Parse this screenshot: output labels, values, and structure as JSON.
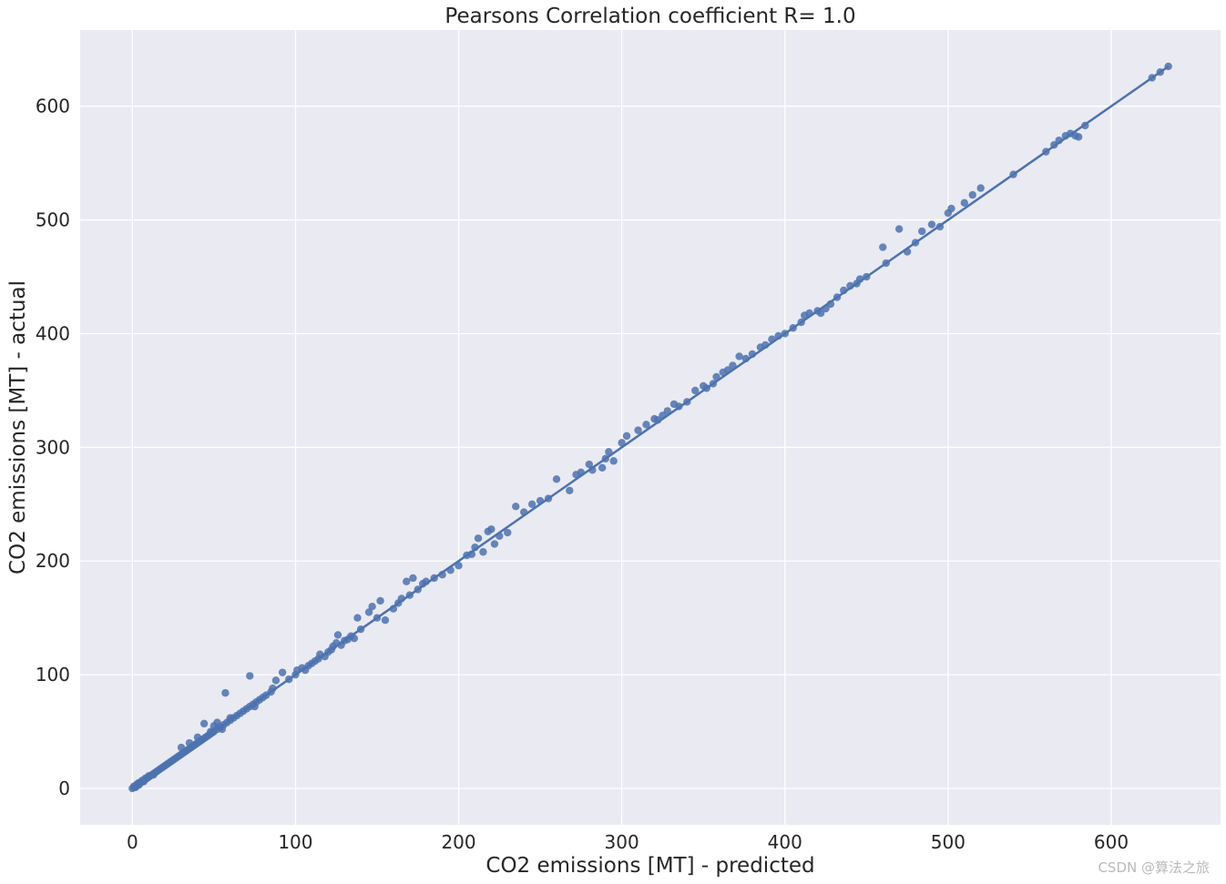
{
  "chart_data": {
    "type": "scatter",
    "title": "Pearsons Correlation coefficient R= 1.0",
    "xlabel": "CO2 emissions [MT] - predicted",
    "ylabel": "CO2 emissions [MT] - actual",
    "xlim": [
      -32,
      667
    ],
    "ylim": [
      -32,
      667
    ],
    "xticks": [
      0,
      100,
      200,
      300,
      400,
      500,
      600
    ],
    "yticks": [
      0,
      100,
      200,
      300,
      400,
      500,
      600
    ],
    "grid": true,
    "background": "#eaeaf2",
    "grid_color": "#ffffff",
    "point_color": "#4c72b0",
    "regression_line": {
      "x": [
        0,
        635
      ],
      "y": [
        0,
        635
      ]
    },
    "points": [
      [
        0,
        0
      ],
      [
        1,
        1
      ],
      [
        1,
        2
      ],
      [
        2,
        1
      ],
      [
        2,
        2
      ],
      [
        3,
        3
      ],
      [
        3,
        4
      ],
      [
        4,
        3
      ],
      [
        4,
        5
      ],
      [
        5,
        5
      ],
      [
        6,
        6
      ],
      [
        6,
        7
      ],
      [
        7,
        6
      ],
      [
        8,
        8
      ],
      [
        8,
        9
      ],
      [
        9,
        9
      ],
      [
        10,
        10
      ],
      [
        10,
        11
      ],
      [
        11,
        11
      ],
      [
        12,
        12
      ],
      [
        13,
        13
      ],
      [
        13,
        12
      ],
      [
        14,
        14
      ],
      [
        15,
        15
      ],
      [
        16,
        16
      ],
      [
        17,
        17
      ],
      [
        18,
        18
      ],
      [
        19,
        19
      ],
      [
        20,
        20
      ],
      [
        21,
        21
      ],
      [
        22,
        22
      ],
      [
        23,
        23
      ],
      [
        24,
        24
      ],
      [
        25,
        25
      ],
      [
        26,
        26
      ],
      [
        27,
        27
      ],
      [
        28,
        28
      ],
      [
        29,
        29
      ],
      [
        30,
        30
      ],
      [
        31,
        31
      ],
      [
        32,
        32
      ],
      [
        33,
        33
      ],
      [
        34,
        34
      ],
      [
        35,
        35
      ],
      [
        36,
        36
      ],
      [
        37,
        37
      ],
      [
        38,
        38
      ],
      [
        39,
        39
      ],
      [
        40,
        40
      ],
      [
        41,
        41
      ],
      [
        42,
        42
      ],
      [
        43,
        43
      ],
      [
        44,
        44
      ],
      [
        45,
        45
      ],
      [
        46,
        46
      ],
      [
        47,
        47
      ],
      [
        48,
        48
      ],
      [
        49,
        49
      ],
      [
        50,
        50
      ],
      [
        52,
        52
      ],
      [
        54,
        54
      ],
      [
        56,
        56
      ],
      [
        58,
        58
      ],
      [
        60,
        60
      ],
      [
        62,
        62
      ],
      [
        64,
        64
      ],
      [
        66,
        66
      ],
      [
        68,
        68
      ],
      [
        70,
        70
      ],
      [
        72,
        72
      ],
      [
        74,
        74
      ],
      [
        76,
        76
      ],
      [
        78,
        78
      ],
      [
        80,
        80
      ],
      [
        82,
        82
      ],
      [
        85,
        85
      ],
      [
        30,
        36
      ],
      [
        35,
        40
      ],
      [
        40,
        45
      ],
      [
        44,
        57
      ],
      [
        48,
        50
      ],
      [
        50,
        55
      ],
      [
        52,
        58
      ],
      [
        55,
        52
      ],
      [
        57,
        84
      ],
      [
        60,
        62
      ],
      [
        72,
        99
      ],
      [
        75,
        72
      ],
      [
        88,
        95
      ],
      [
        86,
        88
      ],
      [
        92,
        102
      ],
      [
        96,
        96
      ],
      [
        100,
        100
      ],
      [
        101,
        104
      ],
      [
        104,
        106
      ],
      [
        106,
        104
      ],
      [
        108,
        108
      ],
      [
        110,
        110
      ],
      [
        112,
        112
      ],
      [
        114,
        114
      ],
      [
        115,
        118
      ],
      [
        118,
        116
      ],
      [
        120,
        120
      ],
      [
        122,
        122
      ],
      [
        123,
        125
      ],
      [
        125,
        128
      ],
      [
        126,
        135
      ],
      [
        128,
        126
      ],
      [
        130,
        130
      ],
      [
        132,
        131
      ],
      [
        134,
        134
      ],
      [
        136,
        132
      ],
      [
        138,
        150
      ],
      [
        140,
        140
      ],
      [
        145,
        155
      ],
      [
        147,
        160
      ],
      [
        150,
        150
      ],
      [
        152,
        165
      ],
      [
        155,
        148
      ],
      [
        160,
        158
      ],
      [
        163,
        163
      ],
      [
        165,
        167
      ],
      [
        168,
        182
      ],
      [
        170,
        170
      ],
      [
        172,
        185
      ],
      [
        175,
        175
      ],
      [
        178,
        180
      ],
      [
        180,
        182
      ],
      [
        185,
        185
      ],
      [
        190,
        188
      ],
      [
        195,
        192
      ],
      [
        200,
        196
      ],
      [
        205,
        205
      ],
      [
        208,
        206
      ],
      [
        210,
        212
      ],
      [
        212,
        220
      ],
      [
        215,
        208
      ],
      [
        218,
        226
      ],
      [
        220,
        228
      ],
      [
        222,
        215
      ],
      [
        225,
        222
      ],
      [
        230,
        225
      ],
      [
        235,
        248
      ],
      [
        240,
        243
      ],
      [
        245,
        250
      ],
      [
        250,
        253
      ],
      [
        255,
        255
      ],
      [
        260,
        272
      ],
      [
        268,
        262
      ],
      [
        272,
        276
      ],
      [
        275,
        278
      ],
      [
        280,
        285
      ],
      [
        282,
        280
      ],
      [
        288,
        282
      ],
      [
        290,
        290
      ],
      [
        292,
        296
      ],
      [
        295,
        288
      ],
      [
        300,
        304
      ],
      [
        303,
        310
      ],
      [
        310,
        315
      ],
      [
        315,
        320
      ],
      [
        320,
        325
      ],
      [
        322,
        324
      ],
      [
        325,
        328
      ],
      [
        328,
        332
      ],
      [
        332,
        338
      ],
      [
        335,
        336
      ],
      [
        340,
        340
      ],
      [
        345,
        350
      ],
      [
        350,
        354
      ],
      [
        352,
        352
      ],
      [
        356,
        356
      ],
      [
        358,
        362
      ],
      [
        362,
        366
      ],
      [
        365,
        368
      ],
      [
        368,
        372
      ],
      [
        372,
        380
      ],
      [
        376,
        378
      ],
      [
        380,
        382
      ],
      [
        385,
        388
      ],
      [
        388,
        390
      ],
      [
        392,
        395
      ],
      [
        396,
        398
      ],
      [
        400,
        400
      ],
      [
        405,
        405
      ],
      [
        410,
        410
      ],
      [
        412,
        416
      ],
      [
        415,
        418
      ],
      [
        420,
        420
      ],
      [
        422,
        418
      ],
      [
        425,
        422
      ],
      [
        428,
        426
      ],
      [
        432,
        432
      ],
      [
        436,
        438
      ],
      [
        440,
        442
      ],
      [
        444,
        444
      ],
      [
        446,
        448
      ],
      [
        450,
        450
      ],
      [
        460,
        476
      ],
      [
        462,
        462
      ],
      [
        470,
        492
      ],
      [
        475,
        472
      ],
      [
        480,
        480
      ],
      [
        484,
        490
      ],
      [
        490,
        496
      ],
      [
        495,
        494
      ],
      [
        500,
        506
      ],
      [
        502,
        510
      ],
      [
        510,
        515
      ],
      [
        515,
        522
      ],
      [
        520,
        528
      ],
      [
        540,
        540
      ],
      [
        560,
        560
      ],
      [
        565,
        566
      ],
      [
        568,
        570
      ],
      [
        572,
        574
      ],
      [
        575,
        576
      ],
      [
        578,
        574
      ],
      [
        580,
        573
      ],
      [
        584,
        583
      ],
      [
        625,
        625
      ],
      [
        630,
        630
      ],
      [
        635,
        635
      ]
    ]
  }
}
